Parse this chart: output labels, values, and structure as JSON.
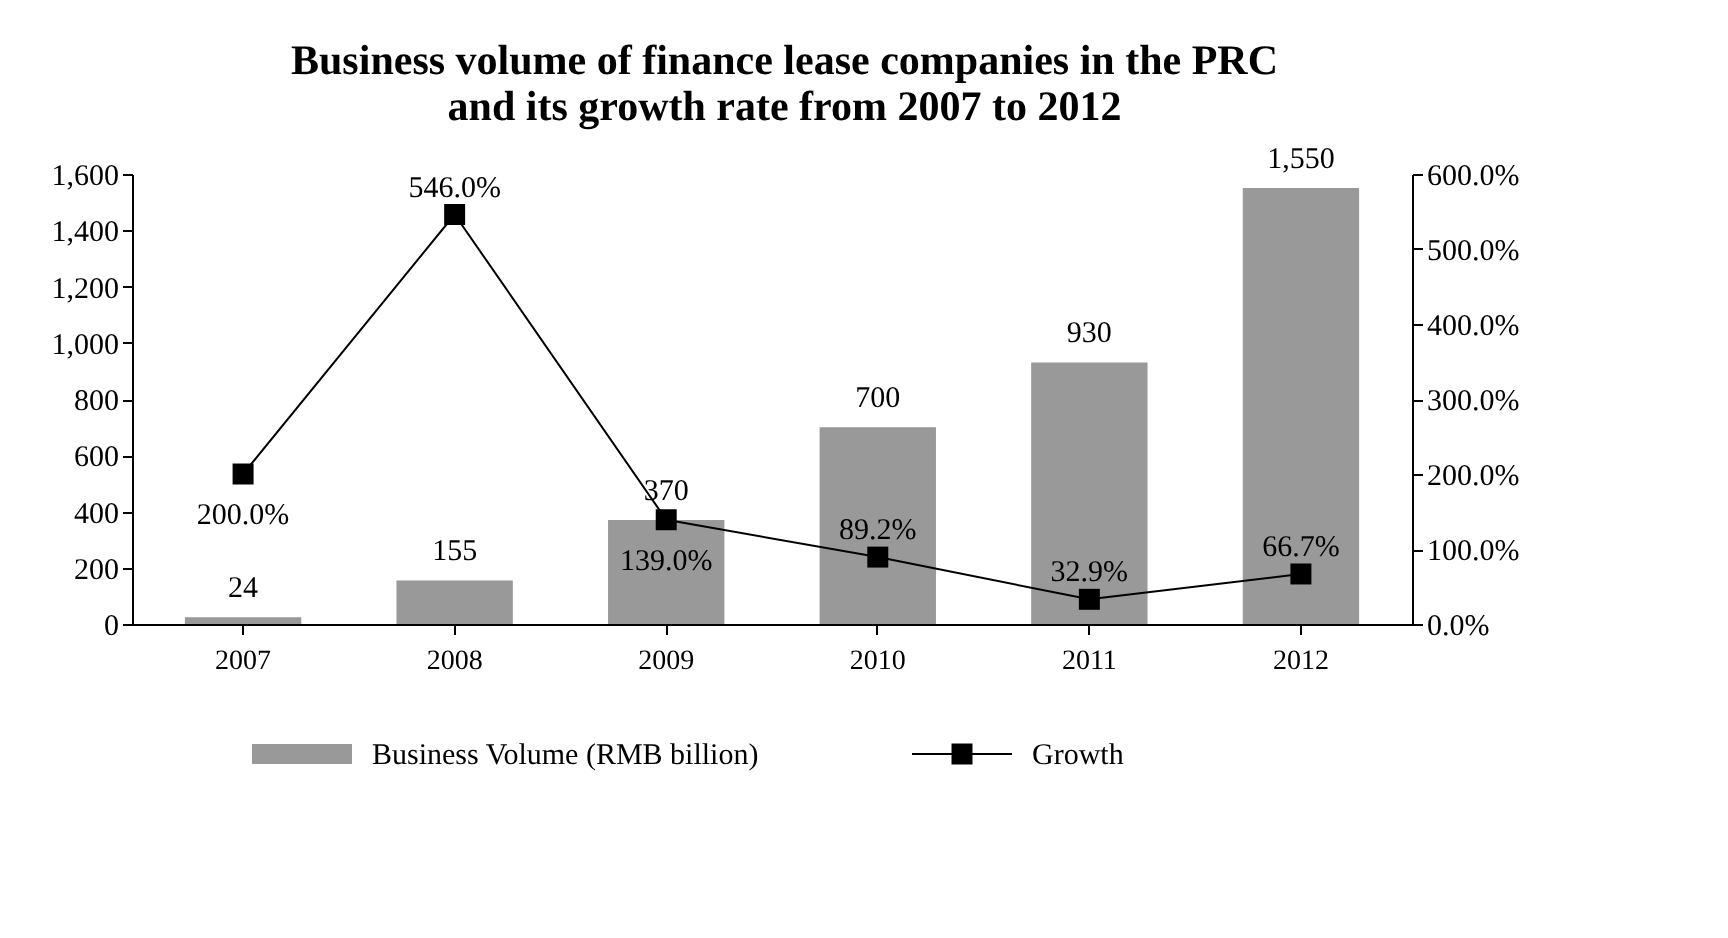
{
  "chart_data": {
    "type": "bar",
    "title": "Business volume of finance lease companies in the PRC\nand its growth rate from 2007 to 2012",
    "categories": [
      "2007",
      "2008",
      "2009",
      "2010",
      "2011",
      "2012"
    ],
    "series": [
      {
        "name": "Business Volume (RMB billion)",
        "color": "#999999",
        "values": [
          24,
          155,
          370,
          700,
          930,
          1550
        ],
        "value_labels": [
          "24",
          "155",
          "370",
          "700",
          "930",
          "1,550"
        ]
      },
      {
        "name": "Growth",
        "type": "line",
        "axis": "y2",
        "color": "#000000",
        "marker": "square",
        "values": [
          200.0,
          546.0,
          139.0,
          89.2,
          32.9,
          66.7
        ],
        "value_labels": [
          "200.0%",
          "546.0%",
          "139.0%",
          "89.2%",
          "32.9%",
          "66.7%"
        ]
      }
    ],
    "ylim": [
      0,
      1600
    ],
    "yticks": [
      0,
      {
        "value": 200,
        "label": "200"
      },
      {
        "value": 400,
        "label": "400"
      },
      {
        "value": 600,
        "label": "600"
      },
      {
        "value": 800,
        "label": "800"
      },
      {
        "value": 1000,
        "label": "1,000"
      },
      {
        "value": 1200,
        "label": "1,200"
      },
      {
        "value": 1400,
        "label": "1,400"
      },
      {
        "value": 1600,
        "label": "1,600"
      }
    ],
    "y2lim": [
      0,
      600
    ],
    "y2ticks": [
      {
        "value": 0,
        "label": "0.0%"
      },
      {
        "value": 100,
        "label": "100.0%"
      },
      {
        "value": 200,
        "label": "200.0%"
      },
      {
        "value": 300,
        "label": "300.0%"
      },
      {
        "value": 400,
        "label": "400.0%"
      },
      {
        "value": 500,
        "label": "500.0%"
      },
      {
        "value": 600,
        "label": "600.0%"
      }
    ],
    "legend": "bottom"
  }
}
